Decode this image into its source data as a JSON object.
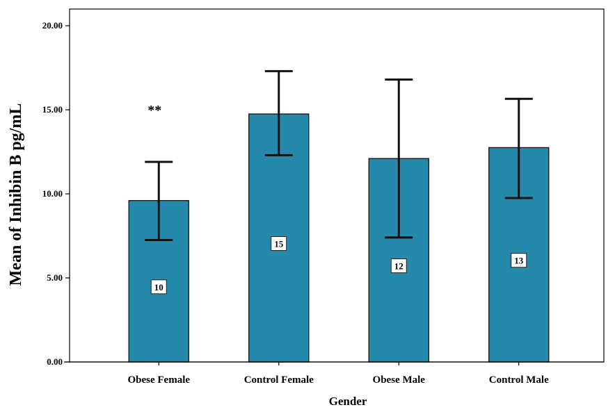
{
  "chart_data": {
    "type": "bar",
    "title": "",
    "xlabel": "Gender",
    "ylabel": "Mean of Inhibin B pg/mL",
    "categories": [
      "Obese Female",
      "Control Female",
      "Obese Male",
      "Control Male"
    ],
    "values": [
      9.6,
      14.75,
      12.1,
      12.75
    ],
    "error_low": [
      7.25,
      12.3,
      7.4,
      9.75
    ],
    "error_high": [
      11.9,
      17.3,
      16.8,
      15.65
    ],
    "n_labels": [
      "10",
      "15",
      "12",
      "13"
    ],
    "annotations": [
      {
        "category": "Obese Female",
        "text": "**"
      }
    ],
    "ylim": [
      0,
      20
    ],
    "yticks": [
      0,
      5,
      10,
      15,
      20
    ],
    "ytick_labels": [
      "0.00",
      "5.00",
      "10.00",
      "15.00",
      "20.00"
    ],
    "grid": false,
    "legend": "none",
    "bar_color": "#2589ab",
    "bar_edge_color": "#1a1a1a"
  }
}
